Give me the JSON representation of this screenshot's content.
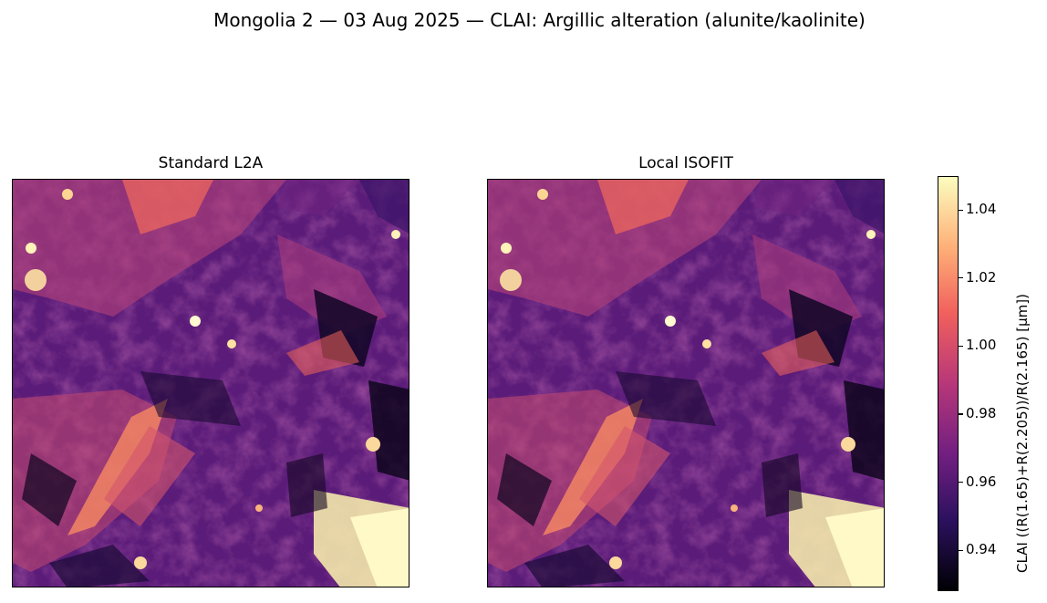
{
  "figure": {
    "title": "Mongolia 2 — 03 Aug 2025 — CLAI: Argillic alteration (alunite/kaolinite)"
  },
  "chart_data": {
    "type": "heatmap",
    "title": "Mongolia 2 — 03 Aug 2025 — CLAI: Argillic alteration (alunite/kaolinite)",
    "panels": [
      {
        "title": "Standard L2A"
      },
      {
        "title": "Local ISOFIT"
      }
    ],
    "colormap": "magma",
    "colormap_stops": [
      "#000004",
      "#2c115f",
      "#721f81",
      "#b73779",
      "#f1605d",
      "#feb078",
      "#fcfdbf"
    ],
    "colorbar": {
      "label": "CLAI  ((R(1.65)+R(2.205))/R(2.165)  [µm])",
      "range": [
        0.928,
        1.05
      ],
      "ticks": [
        "0.94",
        "0.96",
        "0.98",
        "1.00",
        "1.02",
        "1.04"
      ],
      "tick_values": [
        0.94,
        0.96,
        0.98,
        1.0,
        1.02,
        1.04
      ]
    },
    "axes_visible": false,
    "grid": false
  }
}
